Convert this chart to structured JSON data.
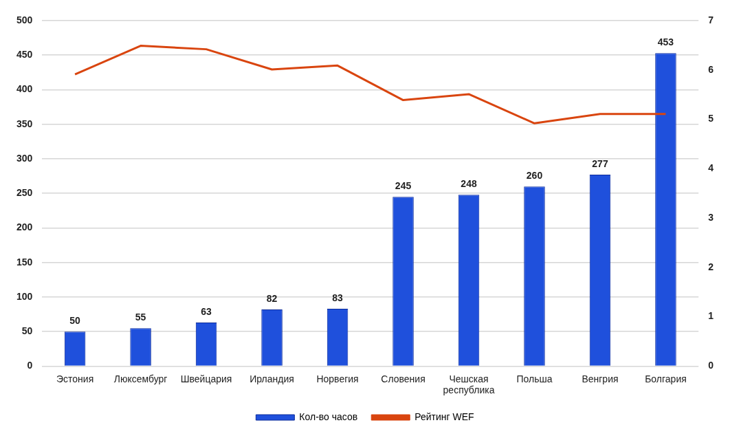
{
  "chart_data": {
    "type": "bar",
    "categories": [
      "Эстония",
      "Люксембург",
      "Швейцария",
      "Ирландия",
      "Норвегия",
      "Словения",
      "Чешская республика",
      "Польша",
      "Венгрия",
      "Болгария"
    ],
    "series": [
      {
        "name": "Кол-во часов",
        "color": "#1f50dc",
        "values": [
          50,
          55,
          63,
          82,
          83,
          245,
          248,
          260,
          277,
          453
        ],
        "value_labels": [
          "50",
          "55",
          "63",
          "82",
          "83",
          "245",
          "248",
          "260",
          "277",
          "453"
        ]
      },
      {
        "name": "Рейтинг WEF",
        "type": "line",
        "axis": "y2",
        "color": "#d9450f",
        "values": [
          5.91,
          6.49,
          6.42,
          6.01,
          6.09,
          5.39,
          5.51,
          4.92,
          5.11,
          5.11
        ]
      }
    ],
    "ylim": [
      0,
      500
    ],
    "yticks": [
      0,
      50,
      100,
      150,
      200,
      250,
      300,
      350,
      400,
      450,
      500
    ],
    "y2lim": [
      0,
      7
    ],
    "y2ticks": [
      0,
      1,
      2,
      3,
      4,
      5,
      6,
      7
    ],
    "grid": "y",
    "legend": "bottom",
    "marker": "none",
    "line_style": "solid"
  }
}
